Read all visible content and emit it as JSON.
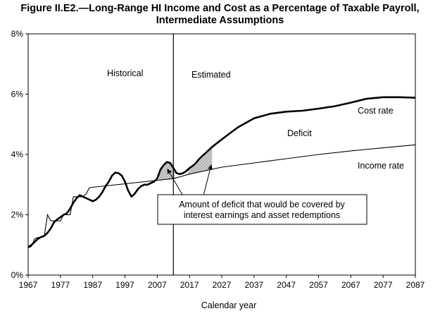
{
  "chart_data": {
    "type": "line",
    "title": "Figure II.E2.—Long-Range HI Income and Cost as a Percentage of Taxable Payroll,",
    "subtitle": "Intermediate Assumptions",
    "xlabel": "Calendar year",
    "ylabel": "",
    "xlim": [
      1967,
      2087
    ],
    "ylim": [
      0,
      8
    ],
    "x_ticks": [
      "1967",
      "1977",
      "1987",
      "1997",
      "2007",
      "2017",
      "2027",
      "2037",
      "2047",
      "2057",
      "2067",
      "2077",
      "2087"
    ],
    "y_ticks": [
      "0%",
      "2%",
      "4%",
      "6%",
      "8%"
    ],
    "grid": false,
    "legend": "none",
    "divider_year": 2012,
    "section_labels": [
      "Historical",
      "Estimated"
    ],
    "series": [
      {
        "name": "Cost rate",
        "color": "#000000",
        "points": [
          [
            1967,
            0.93
          ],
          [
            1968,
            1.0
          ],
          [
            1969,
            1.1
          ],
          [
            1970,
            1.2
          ],
          [
            1971,
            1.26
          ],
          [
            1972,
            1.3
          ],
          [
            1973,
            1.4
          ],
          [
            1974,
            1.55
          ],
          [
            1975,
            1.75
          ],
          [
            1976,
            1.85
          ],
          [
            1977,
            1.92
          ],
          [
            1978,
            2.0
          ],
          [
            1979,
            2.05
          ],
          [
            1980,
            2.2
          ],
          [
            1981,
            2.4
          ],
          [
            1982,
            2.55
          ],
          [
            1983,
            2.65
          ],
          [
            1984,
            2.6
          ],
          [
            1985,
            2.55
          ],
          [
            1986,
            2.5
          ],
          [
            1987,
            2.45
          ],
          [
            1988,
            2.5
          ],
          [
            1989,
            2.6
          ],
          [
            1990,
            2.75
          ],
          [
            1991,
            2.95
          ],
          [
            1992,
            3.1
          ],
          [
            1993,
            3.3
          ],
          [
            1994,
            3.4
          ],
          [
            1995,
            3.38
          ],
          [
            1996,
            3.3
          ],
          [
            1997,
            3.1
          ],
          [
            1998,
            2.8
          ],
          [
            1999,
            2.6
          ],
          [
            2000,
            2.7
          ],
          [
            2001,
            2.85
          ],
          [
            2002,
            2.95
          ],
          [
            2003,
            3.0
          ],
          [
            2004,
            3.0
          ],
          [
            2005,
            3.05
          ],
          [
            2006,
            3.1
          ],
          [
            2007,
            3.2
          ],
          [
            2008,
            3.5
          ],
          [
            2009,
            3.65
          ],
          [
            2010,
            3.75
          ],
          [
            2011,
            3.72
          ],
          [
            2012,
            3.55
          ],
          [
            2013,
            3.38
          ],
          [
            2014,
            3.35
          ],
          [
            2015,
            3.38
          ],
          [
            2016,
            3.45
          ],
          [
            2017,
            3.55
          ],
          [
            2018,
            3.62
          ],
          [
            2019,
            3.72
          ],
          [
            2020,
            3.85
          ],
          [
            2021,
            3.95
          ],
          [
            2022,
            4.05
          ],
          [
            2024,
            4.25
          ],
          [
            2027,
            4.5
          ],
          [
            2032,
            4.9
          ],
          [
            2037,
            5.2
          ],
          [
            2042,
            5.35
          ],
          [
            2047,
            5.42
          ],
          [
            2052,
            5.45
          ],
          [
            2057,
            5.52
          ],
          [
            2062,
            5.6
          ],
          [
            2067,
            5.72
          ],
          [
            2072,
            5.85
          ],
          [
            2077,
            5.9
          ],
          [
            2082,
            5.9
          ],
          [
            2087,
            5.88
          ]
        ]
      },
      {
        "name": "Income rate",
        "color": "#000000",
        "points": [
          [
            1967,
            0.9
          ],
          [
            1968,
            0.95
          ],
          [
            1969,
            1.2
          ],
          [
            1970,
            1.25
          ],
          [
            1971,
            1.25
          ],
          [
            1972,
            1.3
          ],
          [
            1973,
            2.0
          ],
          [
            1974,
            1.8
          ],
          [
            1977,
            1.8
          ],
          [
            1978,
            2.0
          ],
          [
            1980,
            2.0
          ],
          [
            1981,
            2.6
          ],
          [
            1984,
            2.6
          ],
          [
            1985,
            2.7
          ],
          [
            1986,
            2.9
          ],
          [
            2012,
            3.2
          ],
          [
            2017,
            3.35
          ],
          [
            2027,
            3.58
          ],
          [
            2037,
            3.72
          ],
          [
            2047,
            3.86
          ],
          [
            2057,
            4.0
          ],
          [
            2067,
            4.12
          ],
          [
            2077,
            4.22
          ],
          [
            2087,
            4.32
          ]
        ]
      }
    ],
    "annotations": [
      "Historical",
      "Estimated",
      "Deficit",
      "Cost rate",
      "Income rate",
      "Amount of deficit that would be covered by interest earnings and asset redemptions"
    ],
    "callout": {
      "text_line1": "Amount of deficit that would be covered by",
      "text_line2": "interest earnings and asset redemptions"
    }
  }
}
